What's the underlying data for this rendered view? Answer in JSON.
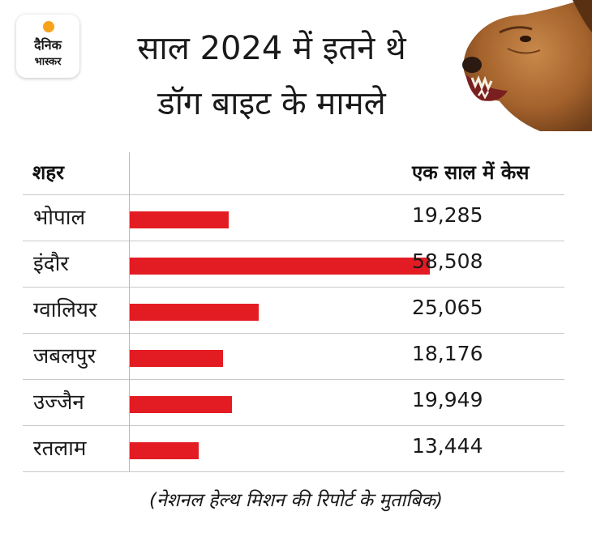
{
  "logo": {
    "line1": "दैनिक",
    "line2": "भास्कर",
    "sun_color": "#f7a21b"
  },
  "title": {
    "line1": "साल 2024 में इतने थे",
    "line2": "डॉग बाइट के मामले"
  },
  "photo": {
    "subject": "snarling dog"
  },
  "colors": {
    "bar": "#e31c23"
  },
  "chart_data": {
    "type": "bar",
    "orientation": "horizontal",
    "column_headers": {
      "category": "शहर",
      "value": "एक साल में केस"
    },
    "categories": [
      "भोपाल",
      "इंदौर",
      "ग्वालियर",
      "जबलपुर",
      "उज्जैन",
      "रतलाम"
    ],
    "values": [
      19285,
      58508,
      25065,
      18176,
      19949,
      13444
    ],
    "value_labels": [
      "19,285",
      "58,508",
      "25,065",
      "18,176",
      "19,949",
      "13,444"
    ],
    "xlim": [
      0,
      58508
    ],
    "grid": false
  },
  "source": "(नेशनल हेल्थ मिशन की रिपोर्ट के मुताबिक)"
}
